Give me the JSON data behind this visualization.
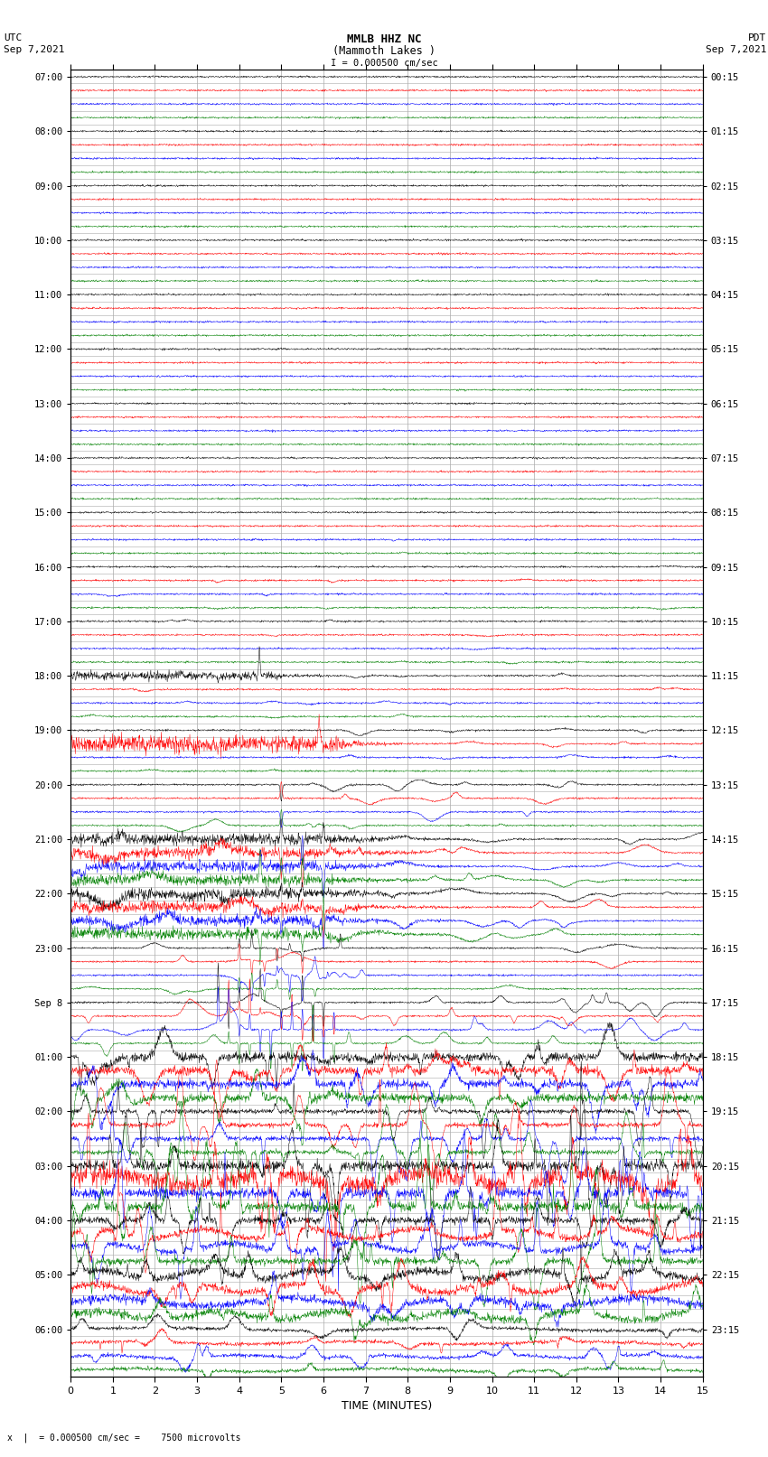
{
  "title_line1": "MMLB HHZ NC",
  "title_line2": "(Mammoth Lakes )",
  "title_line3": "I = 0.000500 cm/sec",
  "left_header_line1": "UTC",
  "left_header_line2": "Sep 7,2021",
  "right_header_line1": "PDT",
  "right_header_line2": "Sep 7,2021",
  "bottom_label": "TIME (MINUTES)",
  "scale_text": "x  |  = 0.000500 cm/sec =    7500 microvolts",
  "xlabel_ticks": [
    0,
    1,
    2,
    3,
    4,
    5,
    6,
    7,
    8,
    9,
    10,
    11,
    12,
    13,
    14,
    15
  ],
  "colors_cycle": [
    "black",
    "red",
    "blue",
    "green"
  ],
  "background_color": "#ffffff",
  "plot_bg_color": "#ffffff",
  "utc_labels": [
    "07:00",
    "",
    "",
    "",
    "08:00",
    "",
    "",
    "",
    "09:00",
    "",
    "",
    "",
    "10:00",
    "",
    "",
    "",
    "11:00",
    "",
    "",
    "",
    "12:00",
    "",
    "",
    "",
    "13:00",
    "",
    "",
    "",
    "14:00",
    "",
    "",
    "",
    "15:00",
    "",
    "",
    "",
    "16:00",
    "",
    "",
    "",
    "17:00",
    "",
    "",
    "",
    "18:00",
    "",
    "",
    "",
    "19:00",
    "",
    "",
    "",
    "20:00",
    "",
    "",
    "",
    "21:00",
    "",
    "",
    "",
    "22:00",
    "",
    "",
    "",
    "23:00",
    "",
    "",
    "",
    "Sep 8",
    "",
    "",
    "",
    "01:00",
    "",
    "",
    "",
    "02:00",
    "",
    "",
    "",
    "03:00",
    "",
    "",
    "",
    "04:00",
    "",
    "",
    "",
    "05:00",
    "",
    "",
    "",
    "06:00",
    "",
    "",
    ""
  ],
  "pdt_labels": [
    "00:15",
    "",
    "",
    "",
    "01:15",
    "",
    "",
    "",
    "02:15",
    "",
    "",
    "",
    "03:15",
    "",
    "",
    "",
    "04:15",
    "",
    "",
    "",
    "05:15",
    "",
    "",
    "",
    "06:15",
    "",
    "",
    "",
    "07:15",
    "",
    "",
    "",
    "08:15",
    "",
    "",
    "",
    "09:15",
    "",
    "",
    "",
    "10:15",
    "",
    "",
    "",
    "11:15",
    "",
    "",
    "",
    "12:15",
    "",
    "",
    "",
    "13:15",
    "",
    "",
    "",
    "14:15",
    "",
    "",
    "",
    "15:15",
    "",
    "",
    "",
    "16:15",
    "",
    "",
    "",
    "17:15",
    "",
    "",
    "",
    "18:15",
    "",
    "",
    "",
    "19:15",
    "",
    "",
    "",
    "20:15",
    "",
    "",
    "",
    "21:15",
    "",
    "",
    "",
    "22:15",
    "",
    "",
    "",
    "23:15",
    "",
    "",
    ""
  ],
  "num_rows": 96,
  "x_min": 0,
  "x_max": 15,
  "figure_width": 8.5,
  "figure_height": 16.13,
  "dpi": 100
}
